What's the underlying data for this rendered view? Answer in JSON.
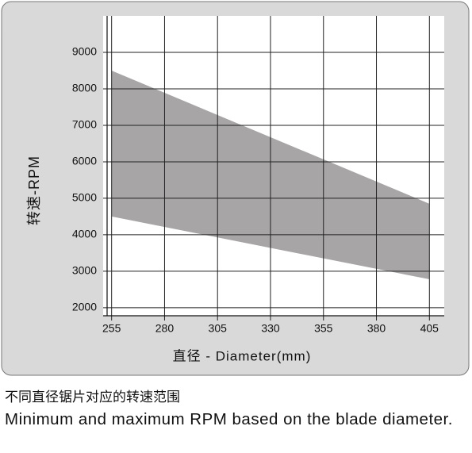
{
  "chart_data": {
    "type": "range-area",
    "x_label": "直径 - Diameter(mm)",
    "y_label": "转速-RPM",
    "x": [
      255,
      405
    ],
    "series": [
      {
        "color": "#a7a5a6",
        "high": [
          8500,
          4850
        ],
        "low": [
          4500,
          2780
        ]
      }
    ],
    "xlim": [
      251,
      412
    ],
    "ylim": [
      1780,
      10000
    ],
    "xticks": [
      255,
      280,
      305,
      330,
      355,
      380,
      405
    ],
    "yticks": [
      2000,
      3000,
      4000,
      5000,
      6000,
      7000,
      8000,
      9000
    ],
    "grid": true
  },
  "caption": {
    "chinese": "不同直径锯片对应的转速范围",
    "english": "Minimum and maximum RPM based on the blade diameter."
  }
}
